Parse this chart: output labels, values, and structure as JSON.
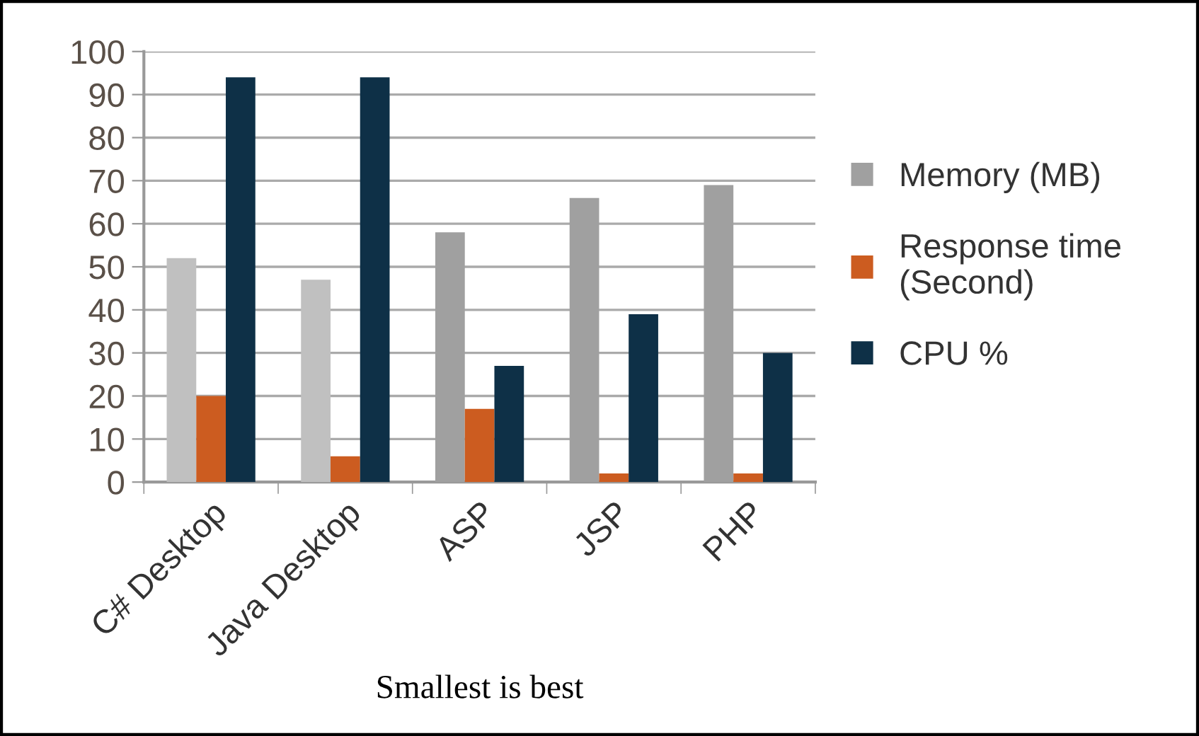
{
  "chart_data": {
    "type": "bar",
    "categories": [
      "C# Desktop",
      "Java Desktop",
      "ASP",
      "JSP",
      "PHP"
    ],
    "series": [
      {
        "name": "Memory (MB)",
        "color": "#a0a0a0",
        "colors": [
          "#c0c0c0",
          "#c0c0c0",
          "#a0a0a0",
          "#a0a0a0",
          "#a0a0a0"
        ],
        "values": [
          52,
          47,
          58,
          66,
          69
        ]
      },
      {
        "name": "Response time\n(Second)",
        "color": "#cc5c20",
        "values": [
          20,
          6,
          17,
          2,
          2
        ]
      },
      {
        "name": "CPU %",
        "color": "#0e3047",
        "values": [
          94,
          94,
          27,
          39,
          30
        ]
      }
    ],
    "xlabel": "Smallest is best",
    "ylim": [
      0,
      100
    ],
    "yticks": [
      0,
      10,
      20,
      30,
      40,
      50,
      60,
      70,
      80,
      90,
      100
    ],
    "grid": "y",
    "legend": "right"
  }
}
